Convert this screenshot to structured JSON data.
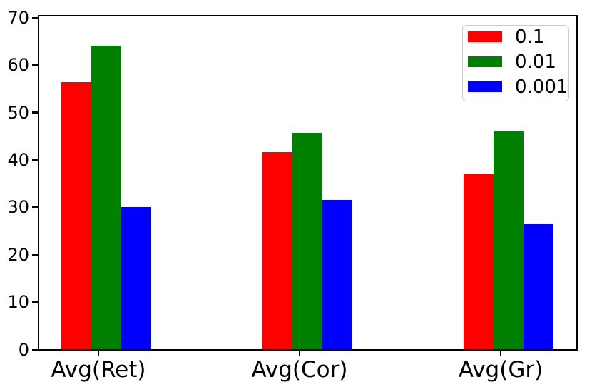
{
  "chart_data": {
    "type": "bar",
    "title": "",
    "xlabel": "",
    "ylabel": "",
    "categories": [
      "Avg(Ret)",
      "Avg(Cor)",
      "Avg(Gr)"
    ],
    "series": [
      {
        "name": "0.1",
        "color": "#ff0000",
        "values": [
          56.3,
          41.6,
          37.0
        ]
      },
      {
        "name": "0.01",
        "color": "#008000",
        "values": [
          64.0,
          45.6,
          46.1
        ]
      },
      {
        "name": "0.001",
        "color": "#0000ff",
        "values": [
          30.0,
          31.5,
          26.3
        ]
      }
    ],
    "ylim": [
      0,
      70
    ],
    "yticks": [
      0,
      10,
      20,
      30,
      40,
      50,
      60,
      70
    ],
    "legend_position": "upper right",
    "grid": false,
    "axis_color": "#000000",
    "background_color": "#ffffff"
  }
}
